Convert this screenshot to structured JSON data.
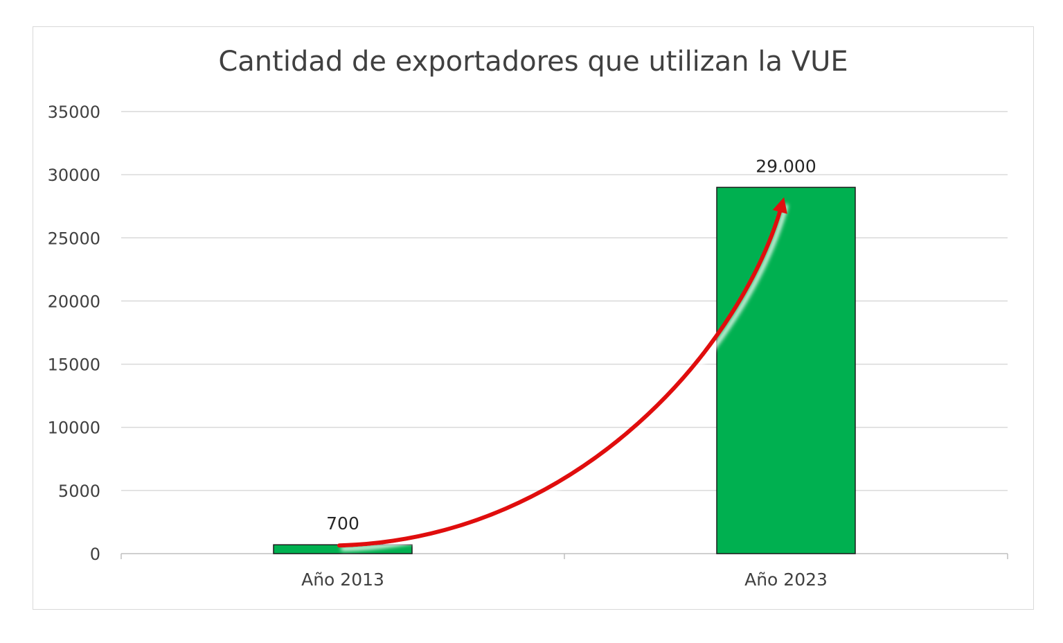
{
  "chart_data": {
    "type": "bar",
    "title": "Cantidad de exportadores que utilizan la VUE",
    "xlabel": "",
    "ylabel": "",
    "categories": [
      "Año 2013",
      "Año 2023"
    ],
    "values": [
      700,
      29000
    ],
    "data_labels": [
      "700",
      "29.000"
    ],
    "ylim": [
      0,
      35000
    ],
    "y_ticks": [
      "0",
      "5000",
      "10000",
      "15000",
      "20000",
      "25000",
      "30000",
      "35000"
    ],
    "y_tick_values": [
      0,
      5000,
      10000,
      15000,
      20000,
      25000,
      30000,
      35000
    ],
    "grid": true,
    "legend": "none",
    "annotation": "red growth arrow curving from the 2013 bar up to the 2023 bar",
    "colors": {
      "bar_fill": "#00b050",
      "bar_stroke": "#1a1a1a",
      "arrow": "#e01010",
      "grid": "#d9d9d9"
    }
  }
}
